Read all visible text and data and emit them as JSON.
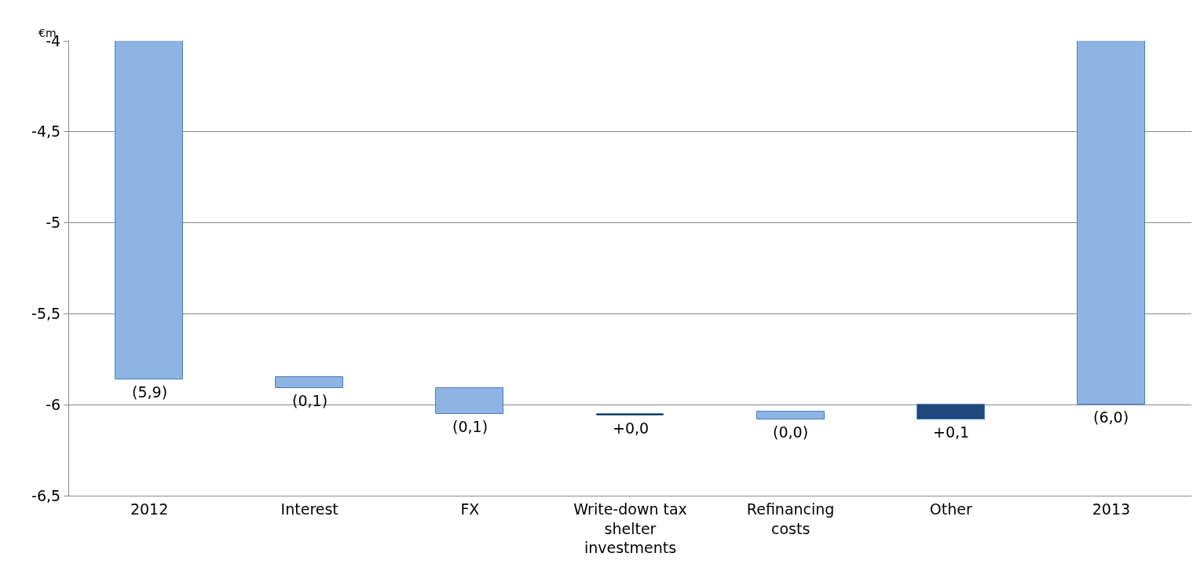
{
  "chart_data": {
    "type": "bar",
    "ylabel": "€m",
    "categories": [
      "2012",
      "Interest",
      "FX",
      "Write-down tax shelter investments",
      "Refinancing costs",
      "Other",
      "2013"
    ],
    "values": [
      -5.86,
      -0.06,
      -0.14,
      0.01,
      -0.04,
      0.08,
      -6.0
    ],
    "base": [
      null,
      -5.85,
      -5.91,
      -6.06,
      -6.04,
      -6.08,
      null
    ],
    "colors": [
      "#8eb4e3",
      "#8eb4e3",
      "#8eb4e3",
      "#1a1a1a",
      "#8eb4e3",
      "#1f497d",
      "#8eb4e3"
    ],
    "value_labels": [
      "(5,9)",
      "(0,1)",
      "(0,1)",
      "+0,0",
      "(0,0)",
      "+0,1",
      "(6,0)"
    ],
    "ylim": [
      -6.5,
      -4
    ],
    "yticks": [
      {
        "value": -6.5,
        "label": "-6,5"
      },
      -6,
      {
        "value": -5.5,
        "label": "-5,5"
      },
      -5,
      {
        "value": -4.5,
        "label": "-4,5"
      },
      -4
    ],
    "grid": "y",
    "legend": false
  }
}
